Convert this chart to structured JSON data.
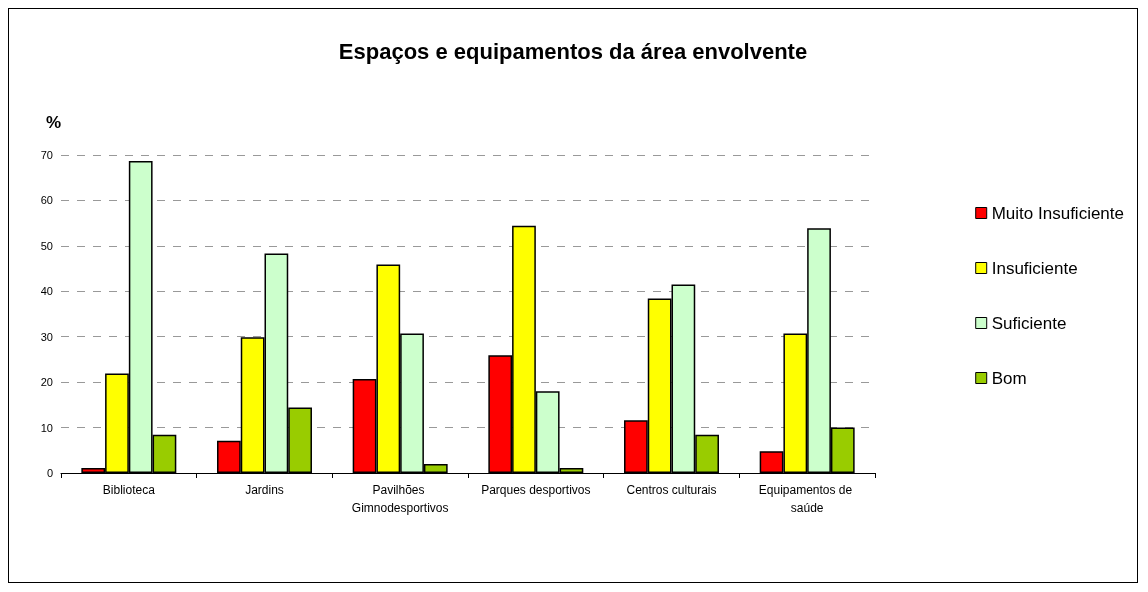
{
  "chart_data": {
    "type": "bar",
    "title": "Espaços e equipamentos da área envolvente",
    "ylabel": "%",
    "categories": [
      "Biblioteca",
      "Jardins",
      "Pavilhões Gimnodesportivos",
      "Parques desportivos",
      "Centros culturais",
      "Equipamentos de saúde"
    ],
    "series": [
      {
        "name": "Muito Insuficiente",
        "color": "#ff0000",
        "values": [
          1.1,
          7.1,
          20.7,
          25.9,
          11.6,
          4.8
        ]
      },
      {
        "name": "Insuficiente",
        "color": "#ffff00",
        "values": [
          21.9,
          29.9,
          45.9,
          54.4,
          38.4,
          30.7
        ]
      },
      {
        "name": "Suficiente",
        "color": "#ccffcc",
        "values": [
          68.7,
          48.3,
          30.7,
          18.0,
          41.5,
          53.9
        ]
      },
      {
        "name": "Bom",
        "color": "#99cc00",
        "values": [
          8.4,
          14.4,
          2.0,
          1.1,
          8.4,
          10.0
        ]
      }
    ],
    "ylim": [
      0,
      70
    ],
    "yticks": [
      0,
      10,
      20,
      30,
      40,
      50,
      60,
      70
    ],
    "grid": "y",
    "legend": "right"
  }
}
